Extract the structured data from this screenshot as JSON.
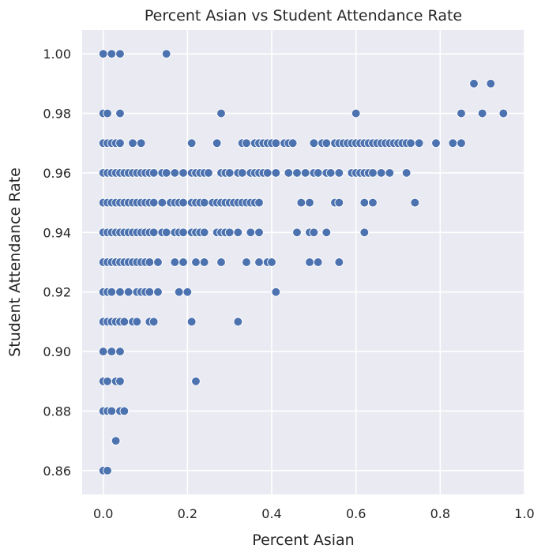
{
  "colors": {
    "plot_background": "#eaeaf2",
    "grid": "#ffffff",
    "marker_fill": "#4c72b0",
    "marker_edge": "#ffffff",
    "text": "#262626"
  },
  "chart_data": {
    "type": "scatter",
    "title": "Percent Asian vs Student Attendance Rate",
    "xlabel": "Percent Asian",
    "ylabel": "Student Attendance Rate",
    "xlim": [
      -0.05,
      1.0
    ],
    "ylim": [
      0.852,
      1.008
    ],
    "xticks": [
      0.0,
      0.2,
      0.4,
      0.6,
      0.8,
      1.0
    ],
    "xtick_labels": [
      "0.0",
      "0.2",
      "0.4",
      "0.6",
      "0.8",
      "1.0"
    ],
    "yticks": [
      0.86,
      0.88,
      0.9,
      0.92,
      0.94,
      0.96,
      0.98,
      1.0
    ],
    "ytick_labels": [
      "0.86",
      "0.88",
      "0.90",
      "0.92",
      "0.94",
      "0.96",
      "0.98",
      "1.00"
    ],
    "grid": true,
    "series": [
      {
        "points": [
          [
            0.0,
            1.0
          ],
          [
            0.02,
            1.0
          ],
          [
            0.04,
            1.0
          ],
          [
            0.15,
            1.0
          ],
          [
            0.0,
            0.98
          ],
          [
            0.01,
            0.98
          ],
          [
            0.04,
            0.98
          ],
          [
            0.28,
            0.98
          ],
          [
            0.6,
            0.98
          ],
          [
            0.85,
            0.98
          ],
          [
            0.9,
            0.98
          ],
          [
            0.95,
            0.98
          ],
          [
            0.88,
            0.99
          ],
          [
            0.92,
            0.99
          ],
          [
            0.0,
            0.97
          ],
          [
            0.01,
            0.97
          ],
          [
            0.02,
            0.97
          ],
          [
            0.03,
            0.97
          ],
          [
            0.04,
            0.97
          ],
          [
            0.07,
            0.97
          ],
          [
            0.09,
            0.97
          ],
          [
            0.21,
            0.97
          ],
          [
            0.27,
            0.97
          ],
          [
            0.33,
            0.97
          ],
          [
            0.34,
            0.97
          ],
          [
            0.36,
            0.97
          ],
          [
            0.37,
            0.97
          ],
          [
            0.38,
            0.97
          ],
          [
            0.39,
            0.97
          ],
          [
            0.4,
            0.97
          ],
          [
            0.41,
            0.97
          ],
          [
            0.43,
            0.97
          ],
          [
            0.44,
            0.97
          ],
          [
            0.45,
            0.97
          ],
          [
            0.5,
            0.97
          ],
          [
            0.52,
            0.97
          ],
          [
            0.53,
            0.97
          ],
          [
            0.55,
            0.97
          ],
          [
            0.56,
            0.97
          ],
          [
            0.57,
            0.97
          ],
          [
            0.58,
            0.97
          ],
          [
            0.59,
            0.97
          ],
          [
            0.6,
            0.97
          ],
          [
            0.61,
            0.97
          ],
          [
            0.62,
            0.97
          ],
          [
            0.63,
            0.97
          ],
          [
            0.64,
            0.97
          ],
          [
            0.65,
            0.97
          ],
          [
            0.66,
            0.97
          ],
          [
            0.67,
            0.97
          ],
          [
            0.68,
            0.97
          ],
          [
            0.69,
            0.97
          ],
          [
            0.7,
            0.97
          ],
          [
            0.71,
            0.97
          ],
          [
            0.72,
            0.97
          ],
          [
            0.73,
            0.97
          ],
          [
            0.75,
            0.97
          ],
          [
            0.79,
            0.97
          ],
          [
            0.83,
            0.97
          ],
          [
            0.85,
            0.97
          ],
          [
            0.0,
            0.96
          ],
          [
            0.01,
            0.96
          ],
          [
            0.02,
            0.96
          ],
          [
            0.03,
            0.96
          ],
          [
            0.04,
            0.96
          ],
          [
            0.05,
            0.96
          ],
          [
            0.06,
            0.96
          ],
          [
            0.07,
            0.96
          ],
          [
            0.08,
            0.96
          ],
          [
            0.09,
            0.96
          ],
          [
            0.1,
            0.96
          ],
          [
            0.11,
            0.96
          ],
          [
            0.12,
            0.96
          ],
          [
            0.14,
            0.96
          ],
          [
            0.15,
            0.96
          ],
          [
            0.17,
            0.96
          ],
          [
            0.19,
            0.96
          ],
          [
            0.21,
            0.96
          ],
          [
            0.22,
            0.96
          ],
          [
            0.23,
            0.96
          ],
          [
            0.24,
            0.96
          ],
          [
            0.25,
            0.96
          ],
          [
            0.28,
            0.96
          ],
          [
            0.29,
            0.96
          ],
          [
            0.3,
            0.96
          ],
          [
            0.32,
            0.96
          ],
          [
            0.33,
            0.96
          ],
          [
            0.35,
            0.96
          ],
          [
            0.36,
            0.96
          ],
          [
            0.37,
            0.96
          ],
          [
            0.38,
            0.96
          ],
          [
            0.39,
            0.96
          ],
          [
            0.41,
            0.96
          ],
          [
            0.44,
            0.96
          ],
          [
            0.46,
            0.96
          ],
          [
            0.48,
            0.96
          ],
          [
            0.5,
            0.96
          ],
          [
            0.51,
            0.96
          ],
          [
            0.53,
            0.96
          ],
          [
            0.54,
            0.96
          ],
          [
            0.56,
            0.96
          ],
          [
            0.59,
            0.96
          ],
          [
            0.6,
            0.96
          ],
          [
            0.61,
            0.96
          ],
          [
            0.62,
            0.96
          ],
          [
            0.63,
            0.96
          ],
          [
            0.64,
            0.96
          ],
          [
            0.66,
            0.96
          ],
          [
            0.68,
            0.96
          ],
          [
            0.72,
            0.96
          ],
          [
            0.0,
            0.95
          ],
          [
            0.01,
            0.95
          ],
          [
            0.02,
            0.95
          ],
          [
            0.03,
            0.95
          ],
          [
            0.04,
            0.95
          ],
          [
            0.05,
            0.95
          ],
          [
            0.06,
            0.95
          ],
          [
            0.07,
            0.95
          ],
          [
            0.08,
            0.95
          ],
          [
            0.09,
            0.95
          ],
          [
            0.1,
            0.95
          ],
          [
            0.11,
            0.95
          ],
          [
            0.12,
            0.95
          ],
          [
            0.14,
            0.95
          ],
          [
            0.16,
            0.95
          ],
          [
            0.17,
            0.95
          ],
          [
            0.18,
            0.95
          ],
          [
            0.19,
            0.95
          ],
          [
            0.21,
            0.95
          ],
          [
            0.22,
            0.95
          ],
          [
            0.23,
            0.95
          ],
          [
            0.24,
            0.95
          ],
          [
            0.26,
            0.95
          ],
          [
            0.27,
            0.95
          ],
          [
            0.28,
            0.95
          ],
          [
            0.29,
            0.95
          ],
          [
            0.3,
            0.95
          ],
          [
            0.31,
            0.95
          ],
          [
            0.32,
            0.95
          ],
          [
            0.33,
            0.95
          ],
          [
            0.34,
            0.95
          ],
          [
            0.35,
            0.95
          ],
          [
            0.36,
            0.95
          ],
          [
            0.37,
            0.95
          ],
          [
            0.47,
            0.95
          ],
          [
            0.49,
            0.95
          ],
          [
            0.55,
            0.95
          ],
          [
            0.56,
            0.95
          ],
          [
            0.62,
            0.95
          ],
          [
            0.64,
            0.95
          ],
          [
            0.74,
            0.95
          ],
          [
            0.0,
            0.94
          ],
          [
            0.01,
            0.94
          ],
          [
            0.02,
            0.94
          ],
          [
            0.03,
            0.94
          ],
          [
            0.04,
            0.94
          ],
          [
            0.05,
            0.94
          ],
          [
            0.06,
            0.94
          ],
          [
            0.07,
            0.94
          ],
          [
            0.08,
            0.94
          ],
          [
            0.09,
            0.94
          ],
          [
            0.1,
            0.94
          ],
          [
            0.11,
            0.94
          ],
          [
            0.12,
            0.94
          ],
          [
            0.14,
            0.94
          ],
          [
            0.15,
            0.94
          ],
          [
            0.17,
            0.94
          ],
          [
            0.18,
            0.94
          ],
          [
            0.19,
            0.94
          ],
          [
            0.21,
            0.94
          ],
          [
            0.22,
            0.94
          ],
          [
            0.23,
            0.94
          ],
          [
            0.24,
            0.94
          ],
          [
            0.27,
            0.94
          ],
          [
            0.28,
            0.94
          ],
          [
            0.29,
            0.94
          ],
          [
            0.3,
            0.94
          ],
          [
            0.32,
            0.94
          ],
          [
            0.35,
            0.94
          ],
          [
            0.37,
            0.94
          ],
          [
            0.46,
            0.94
          ],
          [
            0.49,
            0.94
          ],
          [
            0.5,
            0.94
          ],
          [
            0.53,
            0.94
          ],
          [
            0.62,
            0.94
          ],
          [
            0.0,
            0.93
          ],
          [
            0.01,
            0.93
          ],
          [
            0.02,
            0.93
          ],
          [
            0.03,
            0.93
          ],
          [
            0.04,
            0.93
          ],
          [
            0.05,
            0.93
          ],
          [
            0.06,
            0.93
          ],
          [
            0.07,
            0.93
          ],
          [
            0.08,
            0.93
          ],
          [
            0.09,
            0.93
          ],
          [
            0.1,
            0.93
          ],
          [
            0.11,
            0.93
          ],
          [
            0.13,
            0.93
          ],
          [
            0.17,
            0.93
          ],
          [
            0.19,
            0.93
          ],
          [
            0.22,
            0.93
          ],
          [
            0.24,
            0.93
          ],
          [
            0.28,
            0.93
          ],
          [
            0.34,
            0.93
          ],
          [
            0.37,
            0.93
          ],
          [
            0.39,
            0.93
          ],
          [
            0.4,
            0.93
          ],
          [
            0.49,
            0.93
          ],
          [
            0.51,
            0.93
          ],
          [
            0.56,
            0.93
          ],
          [
            0.0,
            0.92
          ],
          [
            0.01,
            0.92
          ],
          [
            0.02,
            0.92
          ],
          [
            0.04,
            0.92
          ],
          [
            0.06,
            0.92
          ],
          [
            0.08,
            0.92
          ],
          [
            0.09,
            0.92
          ],
          [
            0.1,
            0.92
          ],
          [
            0.11,
            0.92
          ],
          [
            0.13,
            0.92
          ],
          [
            0.18,
            0.92
          ],
          [
            0.2,
            0.92
          ],
          [
            0.41,
            0.92
          ],
          [
            0.0,
            0.91
          ],
          [
            0.01,
            0.91
          ],
          [
            0.02,
            0.91
          ],
          [
            0.03,
            0.91
          ],
          [
            0.04,
            0.91
          ],
          [
            0.05,
            0.91
          ],
          [
            0.07,
            0.91
          ],
          [
            0.08,
            0.91
          ],
          [
            0.11,
            0.91
          ],
          [
            0.12,
            0.91
          ],
          [
            0.21,
            0.91
          ],
          [
            0.32,
            0.91
          ],
          [
            0.0,
            0.9
          ],
          [
            0.02,
            0.9
          ],
          [
            0.04,
            0.9
          ],
          [
            0.0,
            0.89
          ],
          [
            0.01,
            0.89
          ],
          [
            0.03,
            0.89
          ],
          [
            0.04,
            0.89
          ],
          [
            0.22,
            0.89
          ],
          [
            0.0,
            0.88
          ],
          [
            0.01,
            0.88
          ],
          [
            0.02,
            0.88
          ],
          [
            0.04,
            0.88
          ],
          [
            0.05,
            0.88
          ],
          [
            0.03,
            0.87
          ],
          [
            0.0,
            0.86
          ],
          [
            0.01,
            0.86
          ]
        ]
      }
    ]
  }
}
